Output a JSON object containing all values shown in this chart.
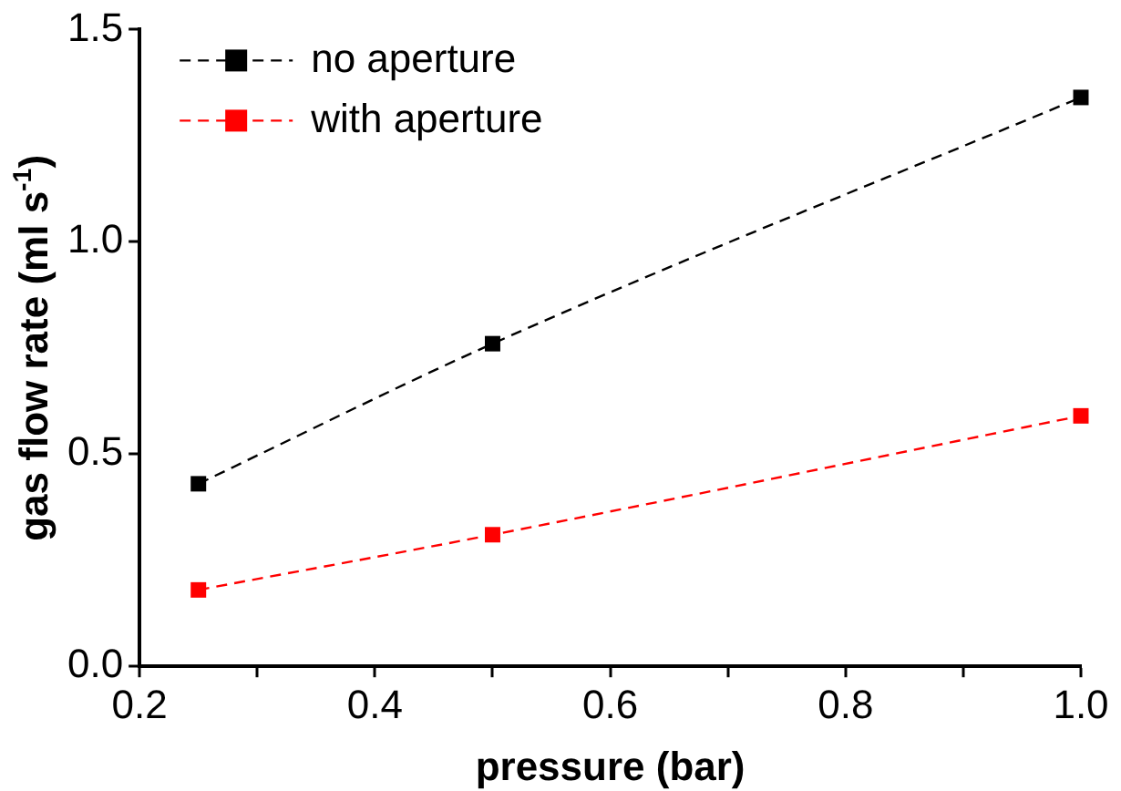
{
  "chart_data": {
    "type": "line",
    "xlabel": "pressure (bar)",
    "ylabel": "gas flow rate (ml s$^{-1}$)",
    "x": [
      0.25,
      0.5,
      1.0
    ],
    "series": [
      {
        "name": "no aperture",
        "color": "#000000",
        "values": [
          0.43,
          0.76,
          1.34
        ]
      },
      {
        "name": "with aperture",
        "color": "#ff0000",
        "values": [
          0.18,
          0.31,
          0.59
        ]
      }
    ],
    "xlim": [
      0.2,
      1.0
    ],
    "xticks": [
      0.2,
      {
        "value": 0.3,
        "label": null
      },
      0.4,
      {
        "value": 0.5,
        "label": null
      },
      0.6,
      {
        "value": 0.7,
        "label": null
      },
      0.8,
      {
        "value": 0.9,
        "label": null
      },
      {
        "value": 1,
        "label": "1.0"
      }
    ],
    "ylim": [
      0,
      1.5
    ],
    "yticks": [
      {
        "value": 0,
        "label": "0.0"
      },
      0.5,
      {
        "value": 1,
        "label": "1.0"
      },
      1.5
    ],
    "grid": false,
    "legend": "top left",
    "marker": "square",
    "line_style": "dashed"
  }
}
